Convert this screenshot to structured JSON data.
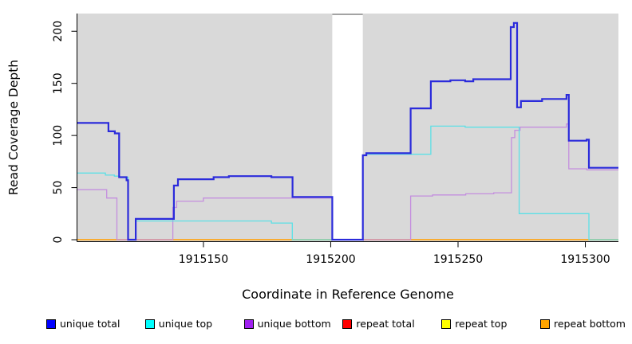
{
  "chart_data": {
    "type": "line",
    "subtype": "step-after",
    "title": "",
    "xlabel": "Coordinate in Reference Genome",
    "ylabel": "Read Coverage Depth",
    "xlim": [
      1915100.5,
      1915313
    ],
    "ylim": [
      -1.5,
      217
    ],
    "x_ticks": [
      1915150,
      1915200,
      1915250,
      1915300
    ],
    "y_ticks": [
      0,
      50,
      100,
      150,
      200
    ],
    "grid": false,
    "plot_bg": "#D9D9D9",
    "axis_color": "#000000",
    "missing_band": {
      "x_start": 1915200.6,
      "x_end": 1915212.6,
      "color": "#FFFFFF",
      "top_edge_color": "#A3A3A3"
    },
    "series": [
      {
        "name": "repeat total",
        "color": "#E03B3B",
        "width": 1.3,
        "points": [
          [
            1915100.5,
            0
          ],
          [
            1915313,
            0
          ]
        ]
      },
      {
        "name": "repeat top",
        "color": "#F5E642",
        "width": 1.3,
        "points": [
          [
            1915100.5,
            0
          ],
          [
            1915313,
            0
          ]
        ]
      },
      {
        "name": "repeat bottom",
        "color": "#FFA513",
        "width": 1.5,
        "points": [
          [
            1915100.5,
            0
          ],
          [
            1915313,
            0
          ]
        ]
      },
      {
        "name": "unique bottom",
        "color": "#C48EDE",
        "width": 1.3,
        "points": [
          [
            1915100.5,
            48
          ],
          [
            1915112,
            40
          ],
          [
            1915116,
            0
          ],
          [
            1915138,
            31
          ],
          [
            1915139.5,
            37
          ],
          [
            1915150,
            40
          ],
          [
            1915200.6,
            0
          ],
          [
            1915231.4,
            42
          ],
          [
            1915240,
            43
          ],
          [
            1915253,
            44
          ],
          [
            1915264,
            45
          ],
          [
            1915271,
            98
          ],
          [
            1915272.3,
            105
          ],
          [
            1915274.4,
            108
          ],
          [
            1915292.6,
            111
          ],
          [
            1915293.5,
            68
          ],
          [
            1915300.6,
            67
          ],
          [
            1915313,
            67
          ]
        ]
      },
      {
        "name": "unique top",
        "color": "#5CE0E6",
        "width": 1.3,
        "points": [
          [
            1915100.5,
            64
          ],
          [
            1915111.5,
            62
          ],
          [
            1915115,
            61
          ],
          [
            1915116.9,
            60
          ],
          [
            1915120.4,
            0
          ],
          [
            1915123.4,
            18
          ],
          [
            1915176.7,
            16
          ],
          [
            1915184.9,
            0
          ],
          [
            1915212.6,
            81
          ],
          [
            1915214,
            82
          ],
          [
            1915239.3,
            109
          ],
          [
            1915252.8,
            108
          ],
          [
            1915274,
            25
          ],
          [
            1915301.4,
            0
          ],
          [
            1915313,
            0
          ]
        ]
      },
      {
        "name": "unique total",
        "color": "#2B2BDB",
        "width": 2.2,
        "points": [
          [
            1915100.5,
            112
          ],
          [
            1915112.7,
            104
          ],
          [
            1915115.2,
            102
          ],
          [
            1915116.9,
            60
          ],
          [
            1915119.8,
            57
          ],
          [
            1915120.4,
            0
          ],
          [
            1915123.4,
            20
          ],
          [
            1915138.4,
            52
          ],
          [
            1915140,
            58
          ],
          [
            1915154,
            60
          ],
          [
            1915160,
            61
          ],
          [
            1915176.7,
            60
          ],
          [
            1915185,
            41
          ],
          [
            1915200.6,
            0
          ],
          [
            1915212.6,
            81
          ],
          [
            1915214,
            83
          ],
          [
            1915231.4,
            126
          ],
          [
            1915239.3,
            152
          ],
          [
            1915247,
            153
          ],
          [
            1915252.8,
            152
          ],
          [
            1915256,
            154
          ],
          [
            1915270.7,
            204
          ],
          [
            1915271.9,
            208
          ],
          [
            1915273.2,
            127
          ],
          [
            1915274.7,
            133
          ],
          [
            1915283,
            135
          ],
          [
            1915292.6,
            139
          ],
          [
            1915293.5,
            95
          ],
          [
            1915300.5,
            96
          ],
          [
            1915301.4,
            69
          ],
          [
            1915313,
            69
          ]
        ]
      }
    ],
    "legend": [
      {
        "label": "unique total",
        "color": "#0000FF"
      },
      {
        "label": "unique top",
        "color": "#00FFFF"
      },
      {
        "label": "unique bottom",
        "color": "#A020F0"
      },
      {
        "label": "repeat total",
        "color": "#FF0000"
      },
      {
        "label": "repeat top",
        "color": "#FFFF00"
      },
      {
        "label": "repeat bottom",
        "color": "#FFA500"
      }
    ],
    "legend_position": "bottom"
  }
}
